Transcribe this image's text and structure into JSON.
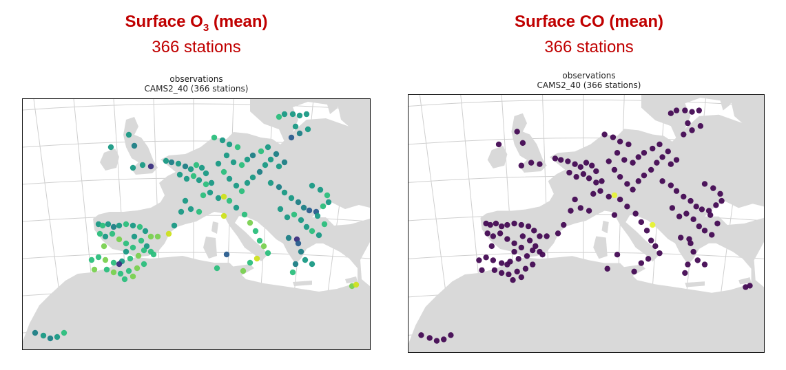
{
  "panels": [
    {
      "id": "o3",
      "title_prefix": "Surface O",
      "title_subscript": "3",
      "title_suffix": " (mean)",
      "subtitle": "366 stations",
      "plot_title_line1": "observations",
      "plot_title_line2": "CAMS2_40 (366 stations)"
    },
    {
      "id": "co",
      "title_prefix": "Surface CO",
      "title_subscript": "",
      "title_suffix": " (mean)",
      "subtitle": "366 stations",
      "plot_title_line1": "observations",
      "plot_title_line2": "CAMS2_40 (366 stations)"
    }
  ],
  "colors": {
    "title": "#c00000",
    "land": "#d9d9d9",
    "sea": "#ffffff",
    "graticule": "#cfcfcf",
    "o3_palette": [
      "#3b2f7f",
      "#2a5d8e",
      "#1e7f86",
      "#1a9a85",
      "#2cbf7d",
      "#7ad151",
      "#cde11d"
    ],
    "co_base": "#440b54",
    "co_high": "#e6f23a"
  }
}
